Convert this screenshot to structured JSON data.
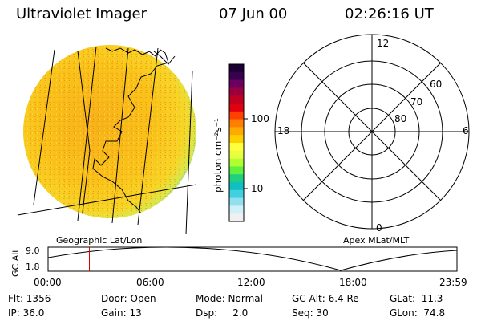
{
  "header": {
    "title": "Ultraviolet Imager",
    "date": "07 Jun 00",
    "time": "02:26:16 UT"
  },
  "globe_panel": {
    "label": "Geographic Lat/Lon"
  },
  "colorbar": {
    "unit_label": "photon cm⁻²s⁻¹",
    "ticks": [
      "100",
      "10"
    ],
    "colors": [
      "#1a0033",
      "#3a0050",
      "#6a0060",
      "#9a0040",
      "#c00020",
      "#e00010",
      "#ff4000",
      "#ff8000",
      "#ffaa00",
      "#ffd000",
      "#ffff40",
      "#e8ff40",
      "#b0ff30",
      "#60f040",
      "#20d080",
      "#10c0c0",
      "#40d0e0",
      "#90e0f0",
      "#d0f0f8",
      "#f0f0f0"
    ]
  },
  "polar_panel": {
    "label": "Apex MLat/MLT",
    "mlt_labels": {
      "top": "12",
      "left": "18",
      "right": "6",
      "bottom": "0"
    },
    "lat_labels": [
      "60",
      "70",
      "80"
    ]
  },
  "altitude_plot": {
    "ylabel": "GC Alt",
    "yticks": [
      "9.0",
      "1.8"
    ],
    "xticks": [
      "00:00",
      "06:00",
      "12:00",
      "18:00",
      "23:59"
    ],
    "current_time_marker_fraction": 0.101
  },
  "status": {
    "flt": "Flt: 1356",
    "ip": "IP: 36.0",
    "door": "Door: Open",
    "gain": "Gain: 13",
    "mode": "Mode: Normal",
    "dsp": "Dsp:     2.0",
    "gc_alt": "GC Alt: 6.4 Re",
    "seq": "Seq: 30",
    "glat": "GLat:  11.3",
    "glon": "GLon:  74.8"
  }
}
